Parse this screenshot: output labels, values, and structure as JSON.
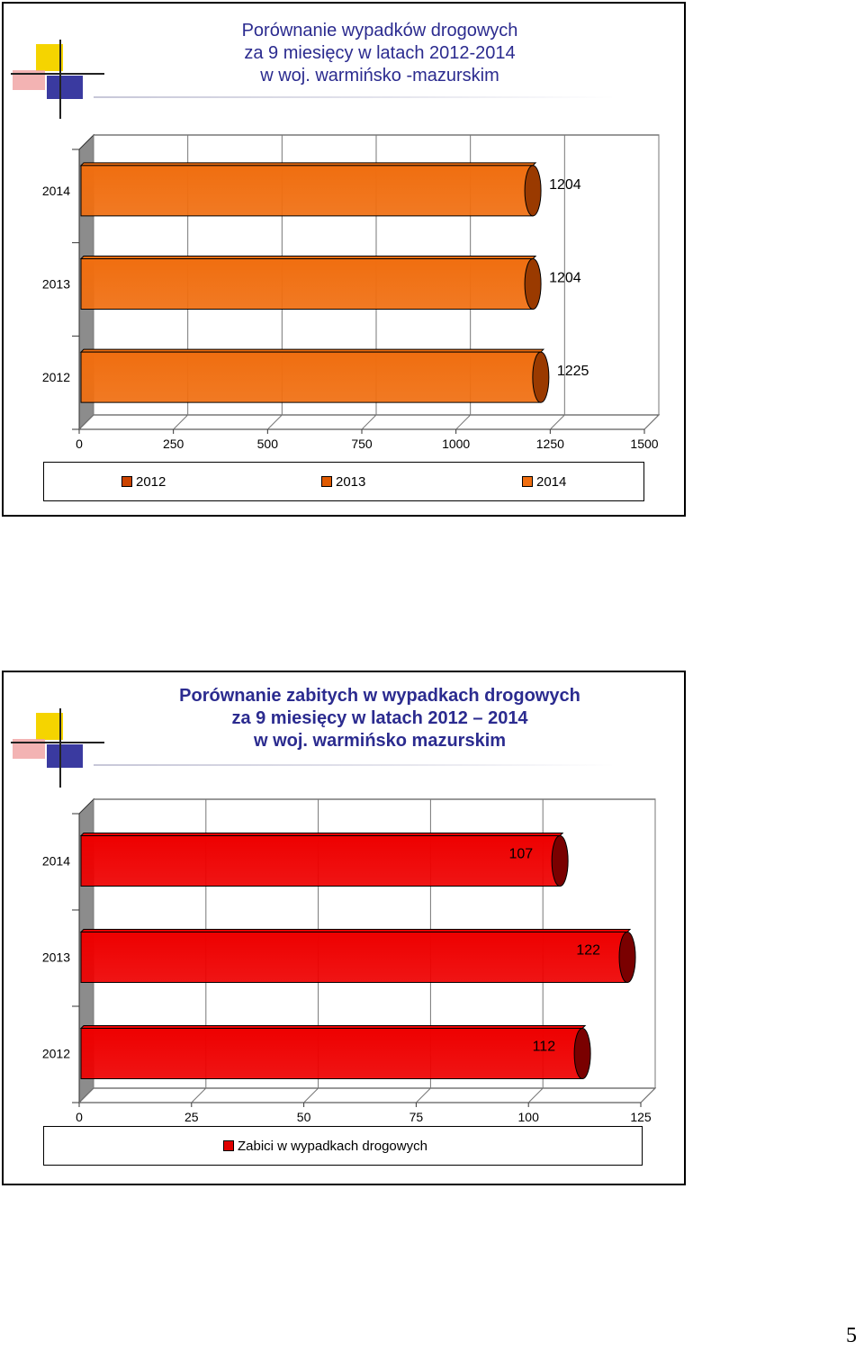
{
  "slide1": {
    "title_lines": [
      "Porównanie wypadków drogowych",
      "za 9 miesięcy w latach 2012-2014",
      "w woj. warmińsko -mazurskim"
    ],
    "legend": [
      {
        "label": "2012",
        "color": "#cc4400"
      },
      {
        "label": "2013",
        "color": "#e05a00"
      },
      {
        "label": "2014",
        "color": "#f06e10"
      }
    ]
  },
  "slide2": {
    "title_lines": [
      "Porównanie zabitych w wypadkach drogowych",
      "za 9 miesięcy w latach 2012 – 2014",
      "w woj. warmińsko mazurskim"
    ],
    "legend": [
      {
        "label": "Zabici w wypadkach drogowych",
        "color": "#e00000"
      }
    ]
  },
  "page_number": "5",
  "chart_data": [
    {
      "type": "bar",
      "orientation": "horizontal",
      "categories": [
        "2014",
        "2013",
        "2012"
      ],
      "values": [
        1204,
        1204,
        1225
      ],
      "data_labels": [
        "1204",
        "1204",
        "1225"
      ],
      "xlim": [
        0,
        1500
      ],
      "x_ticks": [
        "0",
        "250",
        "500",
        "750",
        "1000",
        "1250",
        "1500"
      ],
      "grid": true,
      "bar_color": "#f06e10",
      "bar_dark_color": "#9a3a00"
    },
    {
      "type": "bar",
      "orientation": "horizontal",
      "categories": [
        "2014",
        "2013",
        "2012"
      ],
      "values": [
        107,
        122,
        112
      ],
      "data_labels": [
        "107",
        "122",
        "112"
      ],
      "xlim": [
        0,
        125
      ],
      "x_ticks": [
        "0",
        "25",
        "50",
        "75",
        "100",
        "125"
      ],
      "grid": true,
      "bar_color": "#ee0000",
      "bar_dark_color": "#7a0000"
    }
  ]
}
